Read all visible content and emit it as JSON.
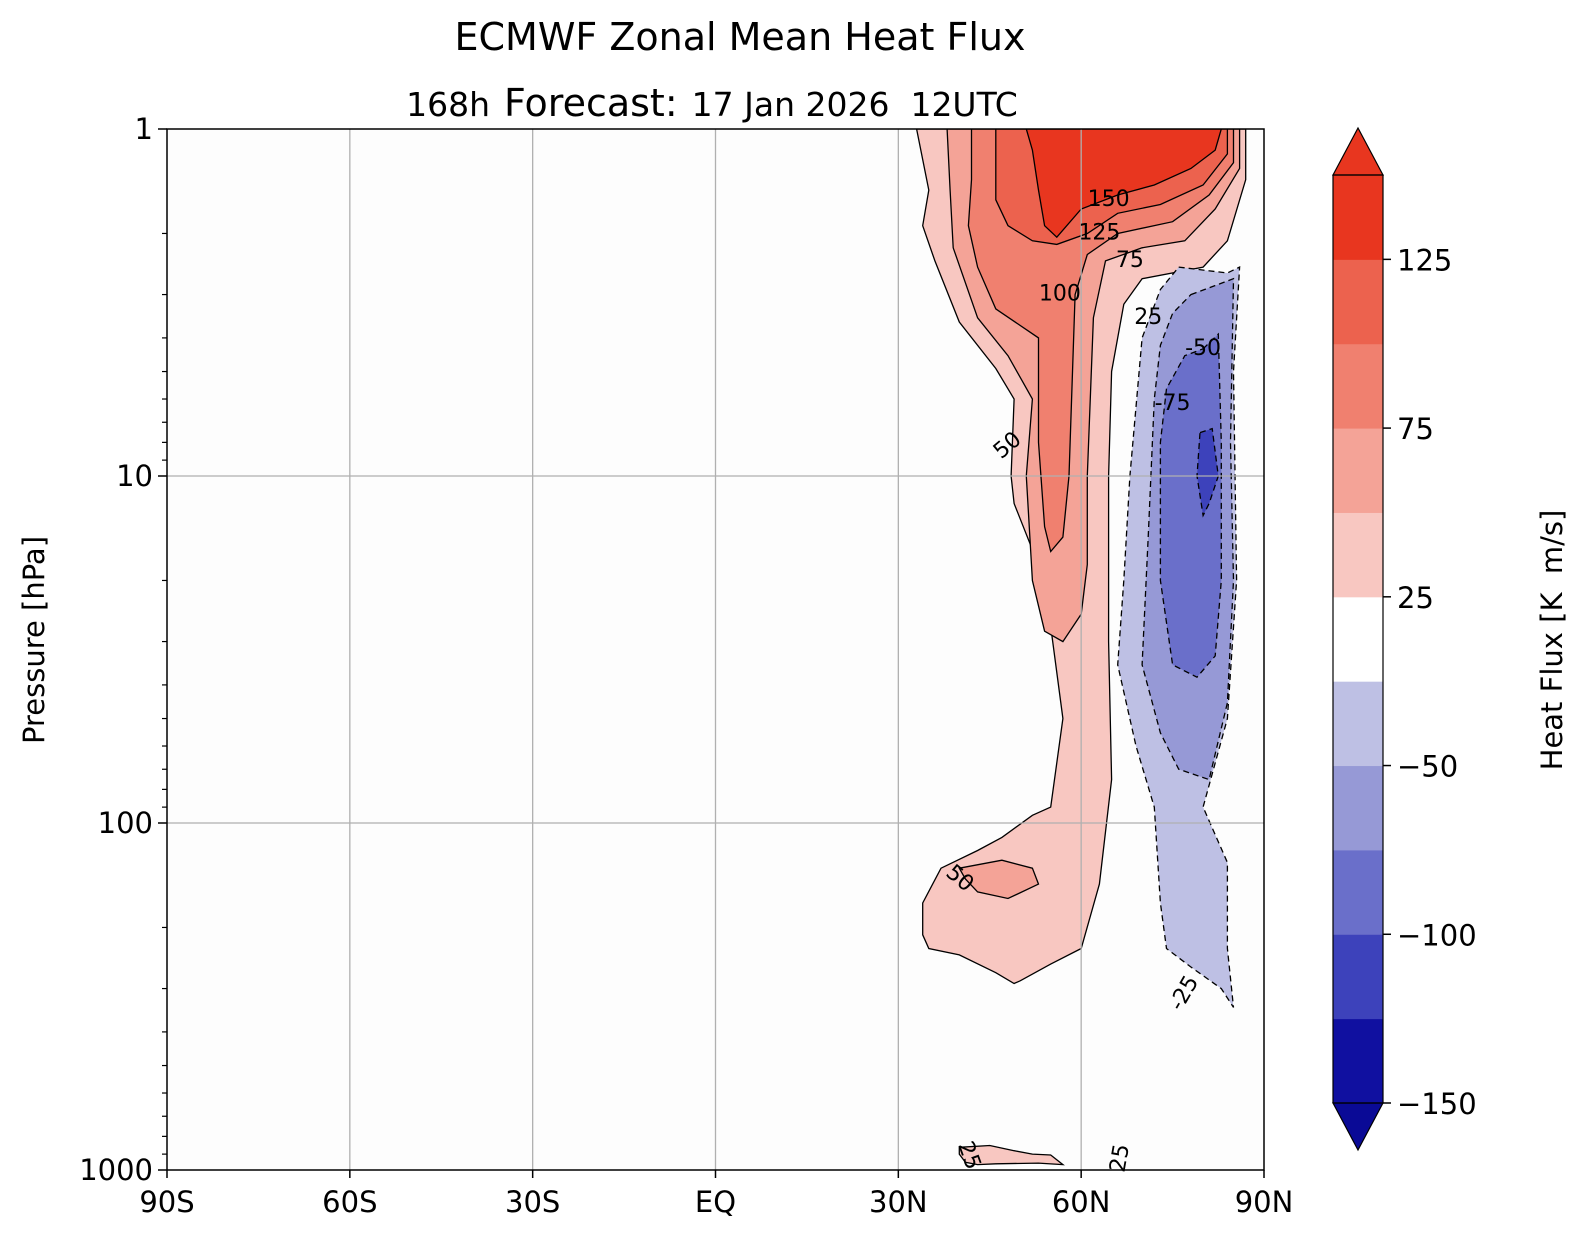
{
  "chart_data": {
    "type": "contourf",
    "title": "ECMWF Zonal Mean Heat Flux",
    "subtitle": {
      "lead": "168h",
      "forecast_word": "Forecast:",
      "valid_time": "17 Jan 2026  12UTC"
    },
    "xlabel": "",
    "ylabel": "Pressure [hPa]",
    "x_axis": {
      "range": [
        -90,
        90
      ],
      "ticks": [
        -90,
        -60,
        -30,
        0,
        30,
        60,
        90
      ],
      "tick_labels": [
        "90S",
        "60S",
        "30S",
        "EQ",
        "30N",
        "60N",
        "90N"
      ],
      "grid": true
    },
    "y_axis": {
      "scale": "log",
      "inverted": true,
      "range": [
        1,
        1000
      ],
      "ticks": [
        1,
        10,
        100,
        1000
      ],
      "tick_labels": [
        "1",
        "10",
        "100",
        "1000"
      ],
      "grid": true
    },
    "colorbar": {
      "label": "Heat Flux [K  m/s]",
      "extend": "both",
      "levels": [
        -150,
        -125,
        -100,
        -75,
        -50,
        -25,
        25,
        50,
        75,
        100,
        125,
        150
      ],
      "colors": [
        "#1010a0",
        "#3d42bb",
        "#6a6fca",
        "#9699d6",
        "#bec0e4",
        "#ffffff",
        "#f8c7c1",
        "#f4a397",
        "#f0806f",
        "#ec624e",
        "#e8361f"
      ],
      "under_color": "#0a0a96",
      "over_color": "#e8361f",
      "tick_values": [
        -150,
        -100,
        -50,
        25,
        75,
        125
      ],
      "tick_labels": [
        "−150",
        "−100",
        "−50",
        "25",
        "75",
        "125"
      ]
    },
    "regions": [
      {
        "level": 25,
        "color": "#f8c7c1",
        "points": [
          [
            33,
            1
          ],
          [
            87,
            1
          ],
          [
            87,
            1.4
          ],
          [
            84,
            2.1
          ],
          [
            80,
            2.5
          ],
          [
            70,
            2.7
          ],
          [
            67,
            3.2
          ],
          [
            65,
            5
          ],
          [
            64.5,
            10
          ],
          [
            64.5,
            30
          ],
          [
            65,
            75
          ],
          [
            63,
            150
          ],
          [
            60,
            230
          ],
          [
            55,
            255
          ],
          [
            50,
            285
          ],
          [
            49,
            290
          ],
          [
            46,
            270
          ],
          [
            40,
            240
          ],
          [
            35,
            230
          ],
          [
            34,
            210
          ],
          [
            34,
            170
          ],
          [
            37,
            135
          ],
          [
            43,
            120
          ],
          [
            47,
            110
          ],
          [
            52,
            95
          ],
          [
            55,
            90
          ],
          [
            57,
            50
          ],
          [
            54,
            20
          ],
          [
            49,
            12
          ],
          [
            48.5,
            10
          ],
          [
            49,
            6
          ],
          [
            46,
            4.9
          ],
          [
            40,
            3.6
          ],
          [
            36,
            2.4
          ],
          [
            34,
            1.9
          ],
          [
            35,
            1.5
          ]
        ]
      },
      {
        "level": 50,
        "color": "#f4a397",
        "points": [
          [
            38,
            1
          ],
          [
            86,
            1
          ],
          [
            86,
            1.3
          ],
          [
            82,
            1.7
          ],
          [
            77,
            2.1
          ],
          [
            70,
            2.2
          ],
          [
            64,
            2.4
          ],
          [
            62,
            3.5
          ],
          [
            61,
            10
          ],
          [
            61,
            18
          ],
          [
            60,
            25
          ],
          [
            57,
            30
          ],
          [
            54,
            28
          ],
          [
            52,
            20
          ],
          [
            51,
            10
          ],
          [
            52,
            6
          ],
          [
            48,
            4.5
          ],
          [
            43,
            3.5
          ],
          [
            39,
            2.2
          ],
          [
            38.5,
            1.5
          ]
        ]
      },
      {
        "level": 50,
        "color": "#f4a397",
        "points": [
          [
            40,
            135
          ],
          [
            47,
            128
          ],
          [
            52,
            135
          ],
          [
            53,
            150
          ],
          [
            48,
            165
          ],
          [
            43,
            158
          ],
          [
            41,
            145
          ]
        ]
      },
      {
        "level": 75,
        "color": "#f0806f",
        "points": [
          [
            42,
            1
          ],
          [
            85,
            1
          ],
          [
            85,
            1.25
          ],
          [
            81,
            1.55
          ],
          [
            75,
            1.85
          ],
          [
            66,
            2
          ],
          [
            61,
            2.3
          ],
          [
            59,
            3
          ],
          [
            58,
            10
          ],
          [
            57,
            15
          ],
          [
            55,
            16.5
          ],
          [
            54,
            14
          ],
          [
            53,
            8
          ],
          [
            53,
            4
          ],
          [
            46,
            3.3
          ],
          [
            43,
            2.5
          ],
          [
            41.5,
            1.9
          ],
          [
            42,
            1.4
          ]
        ]
      },
      {
        "level": 100,
        "color": "#ec624e",
        "points": [
          [
            46,
            1
          ],
          [
            84,
            1
          ],
          [
            84,
            1.18
          ],
          [
            80,
            1.45
          ],
          [
            73,
            1.65
          ],
          [
            66,
            1.75
          ],
          [
            61,
            2
          ],
          [
            56,
            2.15
          ],
          [
            52,
            2.1
          ],
          [
            48,
            1.9
          ],
          [
            46,
            1.6
          ],
          [
            46,
            1.3
          ]
        ]
      },
      {
        "level": 125,
        "color": "#e8361f",
        "points": [
          [
            51,
            1
          ],
          [
            83,
            1
          ],
          [
            82,
            1.15
          ],
          [
            78,
            1.3
          ],
          [
            72,
            1.45
          ],
          [
            66,
            1.55
          ],
          [
            60,
            1.7
          ],
          [
            56,
            2.05
          ],
          [
            54,
            1.9
          ],
          [
            53,
            1.5
          ],
          [
            52,
            1.15
          ]
        ]
      },
      {
        "level": -25,
        "color": "#bec0e4",
        "points": [
          [
            76,
            2.5
          ],
          [
            84,
            2.6
          ],
          [
            86,
            2.5
          ],
          [
            85,
            5
          ],
          [
            85.5,
            20
          ],
          [
            84,
            50
          ],
          [
            80,
            90
          ],
          [
            84,
            130
          ],
          [
            84,
            230
          ],
          [
            85,
            340
          ],
          [
            83,
            300
          ],
          [
            78,
            260
          ],
          [
            74,
            230
          ],
          [
            73,
            170
          ],
          [
            72,
            90
          ],
          [
            69,
            60
          ],
          [
            66,
            35
          ],
          [
            67,
            20
          ],
          [
            68,
            10
          ],
          [
            70,
            4
          ],
          [
            73,
            2.9
          ]
        ]
      },
      {
        "level": -50,
        "color": "#9699d6",
        "points": [
          [
            78,
            3
          ],
          [
            85,
            2.7
          ],
          [
            84.5,
            8
          ],
          [
            85,
            20
          ],
          [
            84,
            45
          ],
          [
            81,
            75
          ],
          [
            76,
            70
          ],
          [
            73,
            55
          ],
          [
            70,
            35
          ],
          [
            71,
            15
          ],
          [
            72,
            6
          ],
          [
            73,
            4.2
          ],
          [
            75,
            3.4
          ]
        ]
      },
      {
        "level": -75,
        "color": "#6a6fca",
        "points": [
          [
            80,
            4.3
          ],
          [
            82.5,
            3.9
          ],
          [
            83,
            8
          ],
          [
            83,
            20
          ],
          [
            82,
            33
          ],
          [
            79,
            38
          ],
          [
            75,
            35
          ],
          [
            73,
            20
          ],
          [
            73,
            8
          ],
          [
            74,
            5.6
          ],
          [
            77,
            4.5
          ]
        ]
      },
      {
        "level": -100,
        "color": "#3d42bb",
        "points": [
          [
            79.5,
            7.5
          ],
          [
            81.5,
            7.3
          ],
          [
            82.5,
            10
          ],
          [
            81,
            12
          ],
          [
            80,
            13
          ],
          [
            79,
            10
          ]
        ]
      },
      {
        "level": 25,
        "color": "#f8c7c1",
        "points": [
          [
            40,
            860
          ],
          [
            45,
            850
          ],
          [
            49,
            880
          ],
          [
            52,
            900
          ],
          [
            55,
            905
          ],
          [
            57,
            965
          ],
          [
            53,
            955
          ],
          [
            46,
            960
          ],
          [
            43,
            965
          ],
          [
            41,
            950
          ],
          [
            40,
            900
          ]
        ]
      }
    ],
    "contour_labels": [
      {
        "text": "150",
        "x": 64.5,
        "y": 1.6,
        "rotation": 0
      },
      {
        "text": "125",
        "x": 63,
        "y": 2.0,
        "rotation": 0
      },
      {
        "text": "75",
        "x": 68,
        "y": 2.4,
        "rotation": 0
      },
      {
        "text": "100",
        "x": 56.5,
        "y": 3.0,
        "rotation": 0
      },
      {
        "text": "25",
        "x": 71,
        "y": 3.5,
        "rotation": 0
      },
      {
        "text": "50",
        "x": 48,
        "y": 8.2,
        "rotation": -40
      },
      {
        "text": "50",
        "x": 40,
        "y": 145,
        "rotation": 40
      },
      {
        "text": "-50",
        "x": 80,
        "y": 4.3,
        "rotation": 0
      },
      {
        "text": "-75",
        "x": 75,
        "y": 6.2,
        "rotation": 0
      },
      {
        "text": "-25",
        "x": 77,
        "y": 310,
        "rotation": -60
      },
      {
        "text": "25",
        "x": 41.5,
        "y": 910,
        "rotation": 70
      },
      {
        "text": "25",
        "x": 66.5,
        "y": 925,
        "rotation": -80
      }
    ]
  }
}
